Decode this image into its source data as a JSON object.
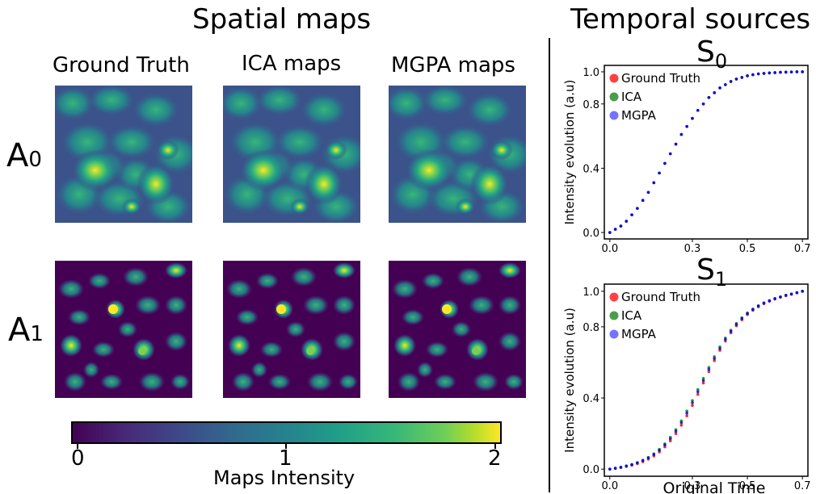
{
  "spatial": {
    "title": "Spatial maps",
    "columns": [
      "Ground Truth",
      "ICA maps",
      "MGPA maps"
    ],
    "rows": [
      {
        "main": "A",
        "sub": "0"
      },
      {
        "main": "A",
        "sub": "1"
      }
    ]
  },
  "colorbar": {
    "label": "Maps Intensity",
    "ticks": [
      "0",
      "1",
      "2"
    ],
    "colormap": "viridis"
  },
  "temporal": {
    "title": "Temporal sources",
    "xlabel": "Original Time"
  },
  "chart_data": [
    {
      "type": "scatter",
      "title_main": "S",
      "title_sub": "0",
      "xlabel": "",
      "ylabel": "Intensity evolution (a.u)",
      "xlim": [
        -0.02,
        0.72
      ],
      "ylim": [
        -0.04,
        1.04
      ],
      "xticks": [
        "0.0",
        "0.3",
        "0.5",
        "0.7"
      ],
      "xtick_values": [
        0.0,
        0.3,
        0.5,
        0.7
      ],
      "yticks": [
        "0.0",
        "0.4",
        "0.8",
        "1.0"
      ],
      "ytick_values": [
        0.0,
        0.4,
        0.8,
        1.0
      ],
      "legend_position": "top-left",
      "series": [
        {
          "name": "Ground Truth",
          "color": "#ff0000",
          "x": [
            0.0,
            0.02,
            0.04,
            0.06,
            0.08,
            0.1,
            0.12,
            0.14,
            0.16,
            0.18,
            0.2,
            0.22,
            0.24,
            0.26,
            0.28,
            0.3,
            0.32,
            0.34,
            0.36,
            0.38,
            0.4,
            0.42,
            0.44,
            0.46,
            0.48,
            0.5,
            0.52,
            0.54,
            0.56,
            0.58,
            0.6,
            0.62,
            0.64,
            0.66,
            0.68,
            0.7
          ],
          "y": [
            0.0,
            0.02,
            0.04,
            0.07,
            0.11,
            0.15,
            0.2,
            0.25,
            0.31,
            0.37,
            0.43,
            0.49,
            0.55,
            0.61,
            0.66,
            0.71,
            0.76,
            0.8,
            0.84,
            0.87,
            0.9,
            0.92,
            0.94,
            0.955,
            0.965,
            0.975,
            0.982,
            0.987,
            0.99,
            0.993,
            0.995,
            0.997,
            0.998,
            0.999,
            1.0,
            1.0
          ]
        },
        {
          "name": "ICA",
          "color": "#008000",
          "x": [
            0.0,
            0.02,
            0.04,
            0.06,
            0.08,
            0.1,
            0.12,
            0.14,
            0.16,
            0.18,
            0.2,
            0.22,
            0.24,
            0.26,
            0.28,
            0.3,
            0.32,
            0.34,
            0.36,
            0.38,
            0.4,
            0.42,
            0.44,
            0.46,
            0.48,
            0.5,
            0.52,
            0.54,
            0.56,
            0.58,
            0.6,
            0.62,
            0.64,
            0.66,
            0.68,
            0.7
          ],
          "y": [
            0.0,
            0.02,
            0.04,
            0.07,
            0.11,
            0.15,
            0.2,
            0.25,
            0.31,
            0.37,
            0.43,
            0.49,
            0.55,
            0.61,
            0.66,
            0.71,
            0.76,
            0.8,
            0.84,
            0.87,
            0.9,
            0.92,
            0.94,
            0.955,
            0.965,
            0.975,
            0.982,
            0.987,
            0.99,
            0.993,
            0.995,
            0.997,
            0.998,
            0.999,
            1.0,
            1.0
          ]
        },
        {
          "name": "MGPA",
          "color": "#0000ff",
          "x": [
            0.0,
            0.02,
            0.04,
            0.06,
            0.08,
            0.1,
            0.12,
            0.14,
            0.16,
            0.18,
            0.2,
            0.22,
            0.24,
            0.26,
            0.28,
            0.3,
            0.32,
            0.34,
            0.36,
            0.38,
            0.4,
            0.42,
            0.44,
            0.46,
            0.48,
            0.5,
            0.52,
            0.54,
            0.56,
            0.58,
            0.6,
            0.62,
            0.64,
            0.66,
            0.68,
            0.7
          ],
          "y": [
            0.0,
            0.02,
            0.04,
            0.07,
            0.11,
            0.15,
            0.2,
            0.25,
            0.31,
            0.37,
            0.43,
            0.49,
            0.55,
            0.61,
            0.66,
            0.71,
            0.76,
            0.8,
            0.84,
            0.87,
            0.9,
            0.92,
            0.94,
            0.955,
            0.965,
            0.975,
            0.982,
            0.987,
            0.99,
            0.993,
            0.995,
            0.997,
            0.998,
            0.999,
            1.0,
            1.0
          ]
        }
      ]
    },
    {
      "type": "scatter",
      "title_main": "S",
      "title_sub": "1",
      "xlabel": "Original Time",
      "ylabel": "Intensity evolution (a.u)",
      "xlim": [
        -0.02,
        0.72
      ],
      "ylim": [
        -0.04,
        1.04
      ],
      "xticks": [
        "0.0",
        "0.3",
        "0.5",
        "0.7"
      ],
      "xtick_values": [
        0.0,
        0.3,
        0.5,
        0.7
      ],
      "yticks": [
        "0.0",
        "0.4",
        "0.8",
        "1.0"
      ],
      "ytick_values": [
        0.0,
        0.4,
        0.8,
        1.0
      ],
      "legend_position": "top-left",
      "series": [
        {
          "name": "Ground Truth",
          "color": "#ff0000",
          "x": [
            0.0,
            0.02,
            0.04,
            0.06,
            0.08,
            0.1,
            0.12,
            0.14,
            0.16,
            0.18,
            0.2,
            0.22,
            0.24,
            0.26,
            0.28,
            0.3,
            0.32,
            0.34,
            0.36,
            0.38,
            0.4,
            0.42,
            0.44,
            0.46,
            0.48,
            0.5,
            0.52,
            0.54,
            0.56,
            0.58,
            0.6,
            0.62,
            0.64,
            0.66,
            0.68,
            0.7
          ],
          "y": [
            0.0,
            0.004,
            0.009,
            0.015,
            0.022,
            0.031,
            0.042,
            0.056,
            0.074,
            0.097,
            0.125,
            0.159,
            0.2,
            0.247,
            0.3,
            0.358,
            0.42,
            0.484,
            0.548,
            0.61,
            0.668,
            0.72,
            0.766,
            0.806,
            0.84,
            0.869,
            0.893,
            0.913,
            0.93,
            0.944,
            0.956,
            0.966,
            0.975,
            0.983,
            0.991,
            1.0
          ]
        },
        {
          "name": "ICA",
          "color": "#008000",
          "x": [
            0.0,
            0.02,
            0.04,
            0.06,
            0.08,
            0.1,
            0.12,
            0.14,
            0.16,
            0.18,
            0.2,
            0.22,
            0.24,
            0.26,
            0.28,
            0.3,
            0.32,
            0.34,
            0.36,
            0.38,
            0.4,
            0.42,
            0.44,
            0.46,
            0.48,
            0.5,
            0.52,
            0.54,
            0.56,
            0.58,
            0.6,
            0.62,
            0.64,
            0.66,
            0.68,
            0.7
          ],
          "y": [
            0.0,
            0.005,
            0.011,
            0.018,
            0.026,
            0.037,
            0.05,
            0.066,
            0.086,
            0.111,
            0.142,
            0.179,
            0.222,
            0.271,
            0.326,
            0.385,
            0.447,
            0.51,
            0.572,
            0.632,
            0.687,
            0.737,
            0.781,
            0.819,
            0.851,
            0.878,
            0.9,
            0.919,
            0.935,
            0.948,
            0.96,
            0.969,
            0.978,
            0.985,
            0.992,
            1.0
          ]
        },
        {
          "name": "MGPA",
          "color": "#0000ff",
          "x": [
            0.0,
            0.02,
            0.04,
            0.06,
            0.08,
            0.1,
            0.12,
            0.14,
            0.16,
            0.18,
            0.2,
            0.22,
            0.24,
            0.26,
            0.28,
            0.3,
            0.32,
            0.34,
            0.36,
            0.38,
            0.4,
            0.42,
            0.44,
            0.46,
            0.48,
            0.5,
            0.52,
            0.54,
            0.56,
            0.58,
            0.6,
            0.62,
            0.64,
            0.66,
            0.68,
            0.7
          ],
          "y": [
            0.0,
            0.005,
            0.01,
            0.017,
            0.025,
            0.035,
            0.048,
            0.063,
            0.082,
            0.106,
            0.136,
            0.171,
            0.213,
            0.261,
            0.315,
            0.373,
            0.435,
            0.498,
            0.561,
            0.622,
            0.678,
            0.729,
            0.774,
            0.813,
            0.846,
            0.874,
            0.897,
            0.916,
            0.933,
            0.946,
            0.958,
            0.968,
            0.977,
            0.984,
            0.992,
            1.0
          ]
        }
      ]
    }
  ]
}
